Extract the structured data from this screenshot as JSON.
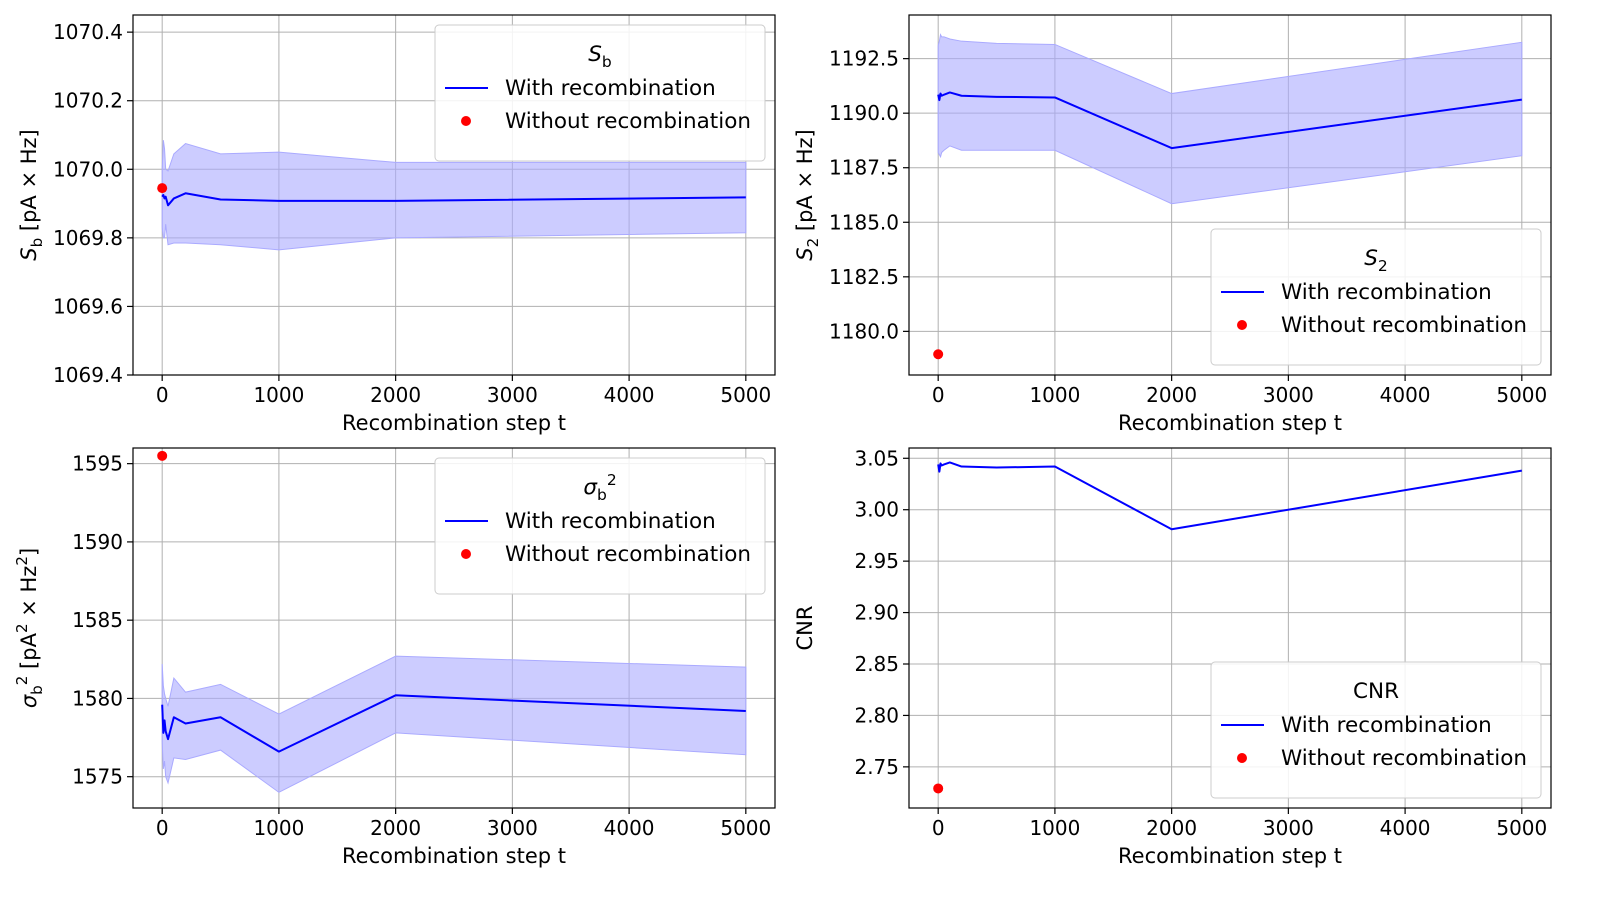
{
  "colors": {
    "line": "#0000ff",
    "band": "#aaaaff",
    "point": "#ff0000"
  },
  "chart_data": [
    {
      "type": "line",
      "legend_title": "S_b",
      "legend_title_display": "Sb",
      "legend_placement": "top-right",
      "xlabel": "Recombination step t",
      "ylabel": "S_b [pA × Hz]",
      "ylabel_display": "Sb [pA × Hz]",
      "xlim": [
        -250,
        5250
      ],
      "ylim": [
        1069.4,
        1070.45
      ],
      "xticks": [
        0,
        1000,
        2000,
        3000,
        4000,
        5000
      ],
      "xtick_labels": [
        "0",
        "1000",
        "2000",
        "3000",
        "4000",
        "5000"
      ],
      "yticks": [
        1069.4,
        1069.6,
        1069.8,
        1070.0,
        1070.2,
        1070.4
      ],
      "ytick_labels": [
        "1069.4",
        "1069.6",
        "1069.8",
        "1070.0",
        "1070.2",
        "1070.4"
      ],
      "grid": true,
      "series": [
        {
          "name": "With recombination",
          "kind": "line",
          "x": [
            0,
            10,
            20,
            30,
            50,
            100,
            200,
            500,
            1000,
            2000,
            5000
          ],
          "y": [
            1069.92,
            1069.925,
            1069.915,
            1069.92,
            1069.895,
            1069.915,
            1069.93,
            1069.912,
            1069.908,
            1069.908,
            1069.918
          ],
          "band_upper": [
            1070.0,
            1070.085,
            1070.06,
            1070.0,
            1069.995,
            1070.045,
            1070.075,
            1070.045,
            1070.05,
            1070.02,
            1070.02
          ],
          "band_lower": [
            1069.83,
            1069.8,
            1069.8,
            1069.84,
            1069.78,
            1069.785,
            1069.785,
            1069.78,
            1069.765,
            1069.8,
            1069.815
          ]
        },
        {
          "name": "Without recombination",
          "kind": "point",
          "x": [
            0
          ],
          "y": [
            1069.945
          ]
        }
      ]
    },
    {
      "type": "line",
      "legend_title": "S_2",
      "legend_title_display": "S2",
      "legend_placement": "bottom-right",
      "xlabel": "Recombination step t",
      "ylabel": "S_2 [pA × Hz]",
      "ylabel_display": "S2 [pA × Hz]",
      "xlim": [
        -250,
        5250
      ],
      "ylim": [
        1178.0,
        1194.5
      ],
      "xticks": [
        0,
        1000,
        2000,
        3000,
        4000,
        5000
      ],
      "xtick_labels": [
        "0",
        "1000",
        "2000",
        "3000",
        "4000",
        "5000"
      ],
      "yticks": [
        1180.0,
        1182.5,
        1185.0,
        1187.5,
        1190.0,
        1192.5
      ],
      "ytick_labels": [
        "1180.0",
        "1182.5",
        "1185.0",
        "1187.5",
        "1190.0",
        "1192.5"
      ],
      "grid": true,
      "series": [
        {
          "name": "With recombination",
          "kind": "line",
          "x": [
            0,
            10,
            20,
            30,
            50,
            100,
            200,
            500,
            1000,
            2000,
            5000
          ],
          "y": [
            1190.85,
            1190.6,
            1190.9,
            1190.8,
            1190.85,
            1190.95,
            1190.8,
            1190.75,
            1190.72,
            1188.4,
            1190.62
          ],
          "band_upper": [
            1193.1,
            1193.3,
            1193.6,
            1193.5,
            1193.5,
            1193.4,
            1193.3,
            1193.2,
            1193.15,
            1190.9,
            1193.25
          ],
          "band_lower": [
            1188.2,
            1188.1,
            1188.0,
            1188.2,
            1188.3,
            1188.5,
            1188.3,
            1188.3,
            1188.3,
            1185.85,
            1188.05
          ]
        },
        {
          "name": "Without recombination",
          "kind": "point",
          "x": [
            0
          ],
          "y": [
            1178.95
          ]
        }
      ]
    },
    {
      "type": "line",
      "legend_title": "σ_b^2",
      "legend_title_display": "σb2",
      "legend_placement": "top-right",
      "xlabel": "Recombination step t",
      "ylabel": "σ_b^2 [pA^2 × Hz^2]",
      "ylabel_display": "σb2 [pA2 × Hz2]",
      "xlim": [
        -250,
        5250
      ],
      "ylim": [
        1573.0,
        1596.0
      ],
      "xticks": [
        0,
        1000,
        2000,
        3000,
        4000,
        5000
      ],
      "xtick_labels": [
        "0",
        "1000",
        "2000",
        "3000",
        "4000",
        "5000"
      ],
      "yticks": [
        1575,
        1580,
        1585,
        1590,
        1595
      ],
      "ytick_labels": [
        "1575",
        "1580",
        "1585",
        "1590",
        "1595"
      ],
      "grid": true,
      "series": [
        {
          "name": "With recombination",
          "kind": "line",
          "x": [
            0,
            10,
            20,
            30,
            50,
            100,
            200,
            500,
            1000,
            2000,
            5000
          ],
          "y": [
            1579.6,
            1577.8,
            1578.6,
            1577.9,
            1577.4,
            1578.8,
            1578.4,
            1578.8,
            1576.6,
            1580.2,
            1579.2
          ],
          "band_upper": [
            1582.2,
            1580.8,
            1580.3,
            1580.0,
            1579.5,
            1581.3,
            1580.4,
            1580.9,
            1579.0,
            1582.7,
            1582.0
          ],
          "band_lower": [
            1577.2,
            1575.5,
            1576.0,
            1575.0,
            1574.6,
            1576.2,
            1576.1,
            1576.7,
            1574.0,
            1577.8,
            1576.4
          ]
        },
        {
          "name": "Without recombination",
          "kind": "point",
          "x": [
            0
          ],
          "y": [
            1595.5
          ]
        }
      ]
    },
    {
      "type": "line",
      "legend_title": "CNR",
      "legend_title_display": "CNR",
      "legend_placement": "bottom-right",
      "xlabel": "Recombination step t",
      "ylabel": "CNR",
      "ylabel_display": "CNR",
      "xlim": [
        -250,
        5250
      ],
      "ylim": [
        2.71,
        3.06
      ],
      "xticks": [
        0,
        1000,
        2000,
        3000,
        4000,
        5000
      ],
      "xtick_labels": [
        "0",
        "1000",
        "2000",
        "3000",
        "4000",
        "5000"
      ],
      "yticks": [
        2.75,
        2.8,
        2.85,
        2.9,
        2.95,
        3.0,
        3.05
      ],
      "ytick_labels": [
        "2.75",
        "2.80",
        "2.85",
        "2.90",
        "2.95",
        "3.00",
        "3.05"
      ],
      "grid": true,
      "series": [
        {
          "name": "With recombination",
          "kind": "line",
          "x": [
            0,
            10,
            20,
            30,
            50,
            100,
            200,
            500,
            1000,
            2000,
            5000
          ],
          "y": [
            3.044,
            3.037,
            3.045,
            3.043,
            3.044,
            3.046,
            3.042,
            3.041,
            3.042,
            2.981,
            3.038
          ]
        },
        {
          "name": "Without recombination",
          "kind": "point",
          "x": [
            0
          ],
          "y": [
            2.729
          ]
        }
      ]
    }
  ]
}
